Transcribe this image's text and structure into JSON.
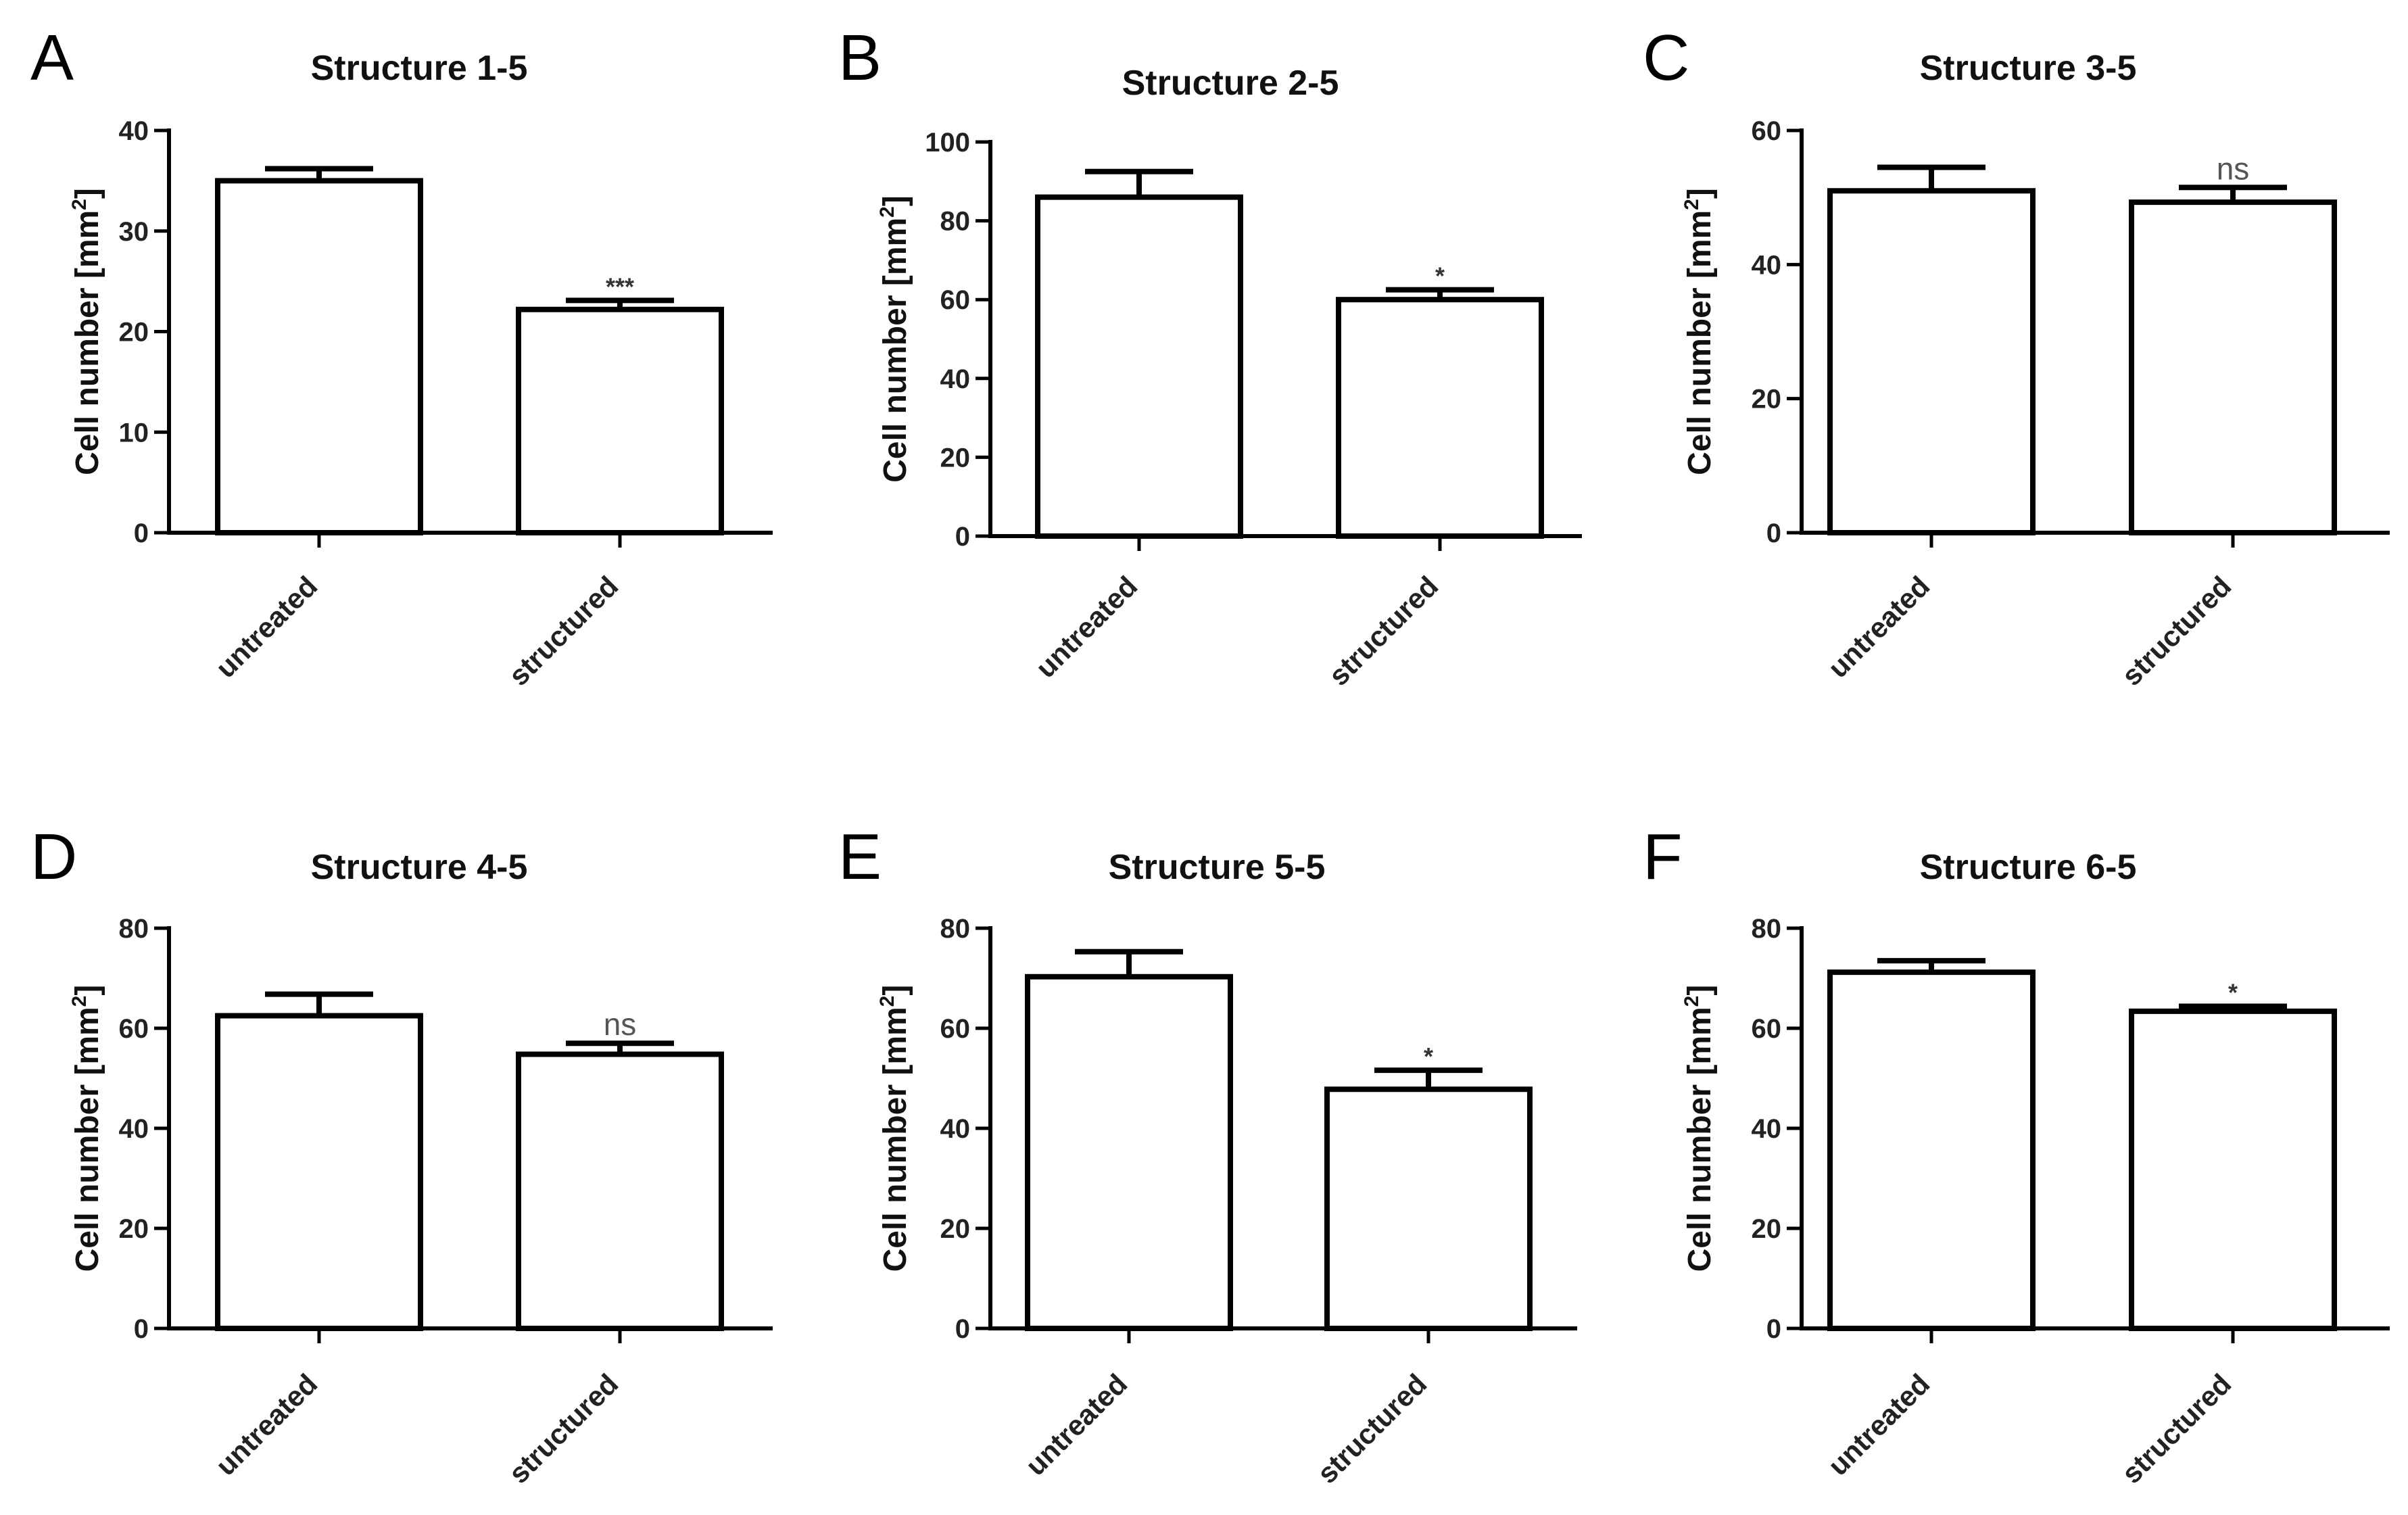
{
  "chart_data": [
    {
      "panel": "A",
      "type": "bar",
      "title": "Structure 1-5",
      "ylabel_main": "Cell number [mm",
      "ylabel_sup": "2",
      "ylabel_close": "]",
      "xlabel": "",
      "categories": [
        "untreated",
        "structured"
      ],
      "values": [
        35,
        22.2
      ],
      "errors": [
        1.2,
        0.9
      ],
      "significance": [
        "",
        "***"
      ],
      "ylim": [
        0,
        40
      ],
      "yticks": [
        0,
        10,
        20,
        30,
        40
      ]
    },
    {
      "panel": "B",
      "type": "bar",
      "title": "Structure 2-5",
      "ylabel_main": "Cell number [mm",
      "ylabel_sup": "2",
      "ylabel_close": "]",
      "xlabel": "",
      "categories": [
        "untreated",
        "structured"
      ],
      "values": [
        86,
        60
      ],
      "errors": [
        6.5,
        2.5
      ],
      "significance": [
        "",
        "*"
      ],
      "ylim": [
        0,
        100
      ],
      "yticks": [
        0,
        20,
        40,
        60,
        80,
        100
      ]
    },
    {
      "panel": "C",
      "type": "bar",
      "title": "Structure 3-5",
      "ylabel_main": "Cell number [mm",
      "ylabel_sup": "2",
      "ylabel_close": "]",
      "xlabel": "",
      "categories": [
        "untreated",
        "structured"
      ],
      "values": [
        51,
        49.3
      ],
      "errors": [
        3.5,
        2.2
      ],
      "significance": [
        "",
        "ns"
      ],
      "ylim": [
        0,
        60
      ],
      "yticks": [
        0,
        20,
        40,
        60
      ]
    },
    {
      "panel": "D",
      "type": "bar",
      "title": "Structure 4-5",
      "ylabel_main": "Cell number [mm",
      "ylabel_sup": "2",
      "ylabel_close": "]",
      "xlabel": "",
      "categories": [
        "untreated",
        "structured"
      ],
      "values": [
        62.5,
        54.8
      ],
      "errors": [
        4.3,
        2.2
      ],
      "significance": [
        "",
        "ns"
      ],
      "ylim": [
        0,
        80
      ],
      "yticks": [
        0,
        20,
        40,
        60,
        80
      ]
    },
    {
      "panel": "E",
      "type": "bar",
      "title": "Structure 5-5",
      "ylabel_main": "Cell number [mm",
      "ylabel_sup": "2",
      "ylabel_close": "]",
      "xlabel": "",
      "categories": [
        "untreated",
        "structured"
      ],
      "values": [
        70.3,
        47.8
      ],
      "errors": [
        5.0,
        3.8
      ],
      "significance": [
        "",
        "*"
      ],
      "ylim": [
        0,
        80
      ],
      "yticks": [
        0,
        20,
        40,
        60,
        80
      ]
    },
    {
      "panel": "F",
      "type": "bar",
      "title": "Structure 6-5",
      "ylabel_main": "Cell number [mm",
      "ylabel_sup": "2",
      "ylabel_close": "]",
      "xlabel": "",
      "categories": [
        "untreated",
        "structured"
      ],
      "values": [
        71.2,
        63.4
      ],
      "errors": [
        2.3,
        1.0
      ],
      "significance": [
        "",
        "*"
      ],
      "ylim": [
        0,
        80
      ],
      "yticks": [
        0,
        20,
        40,
        60,
        80
      ]
    }
  ]
}
